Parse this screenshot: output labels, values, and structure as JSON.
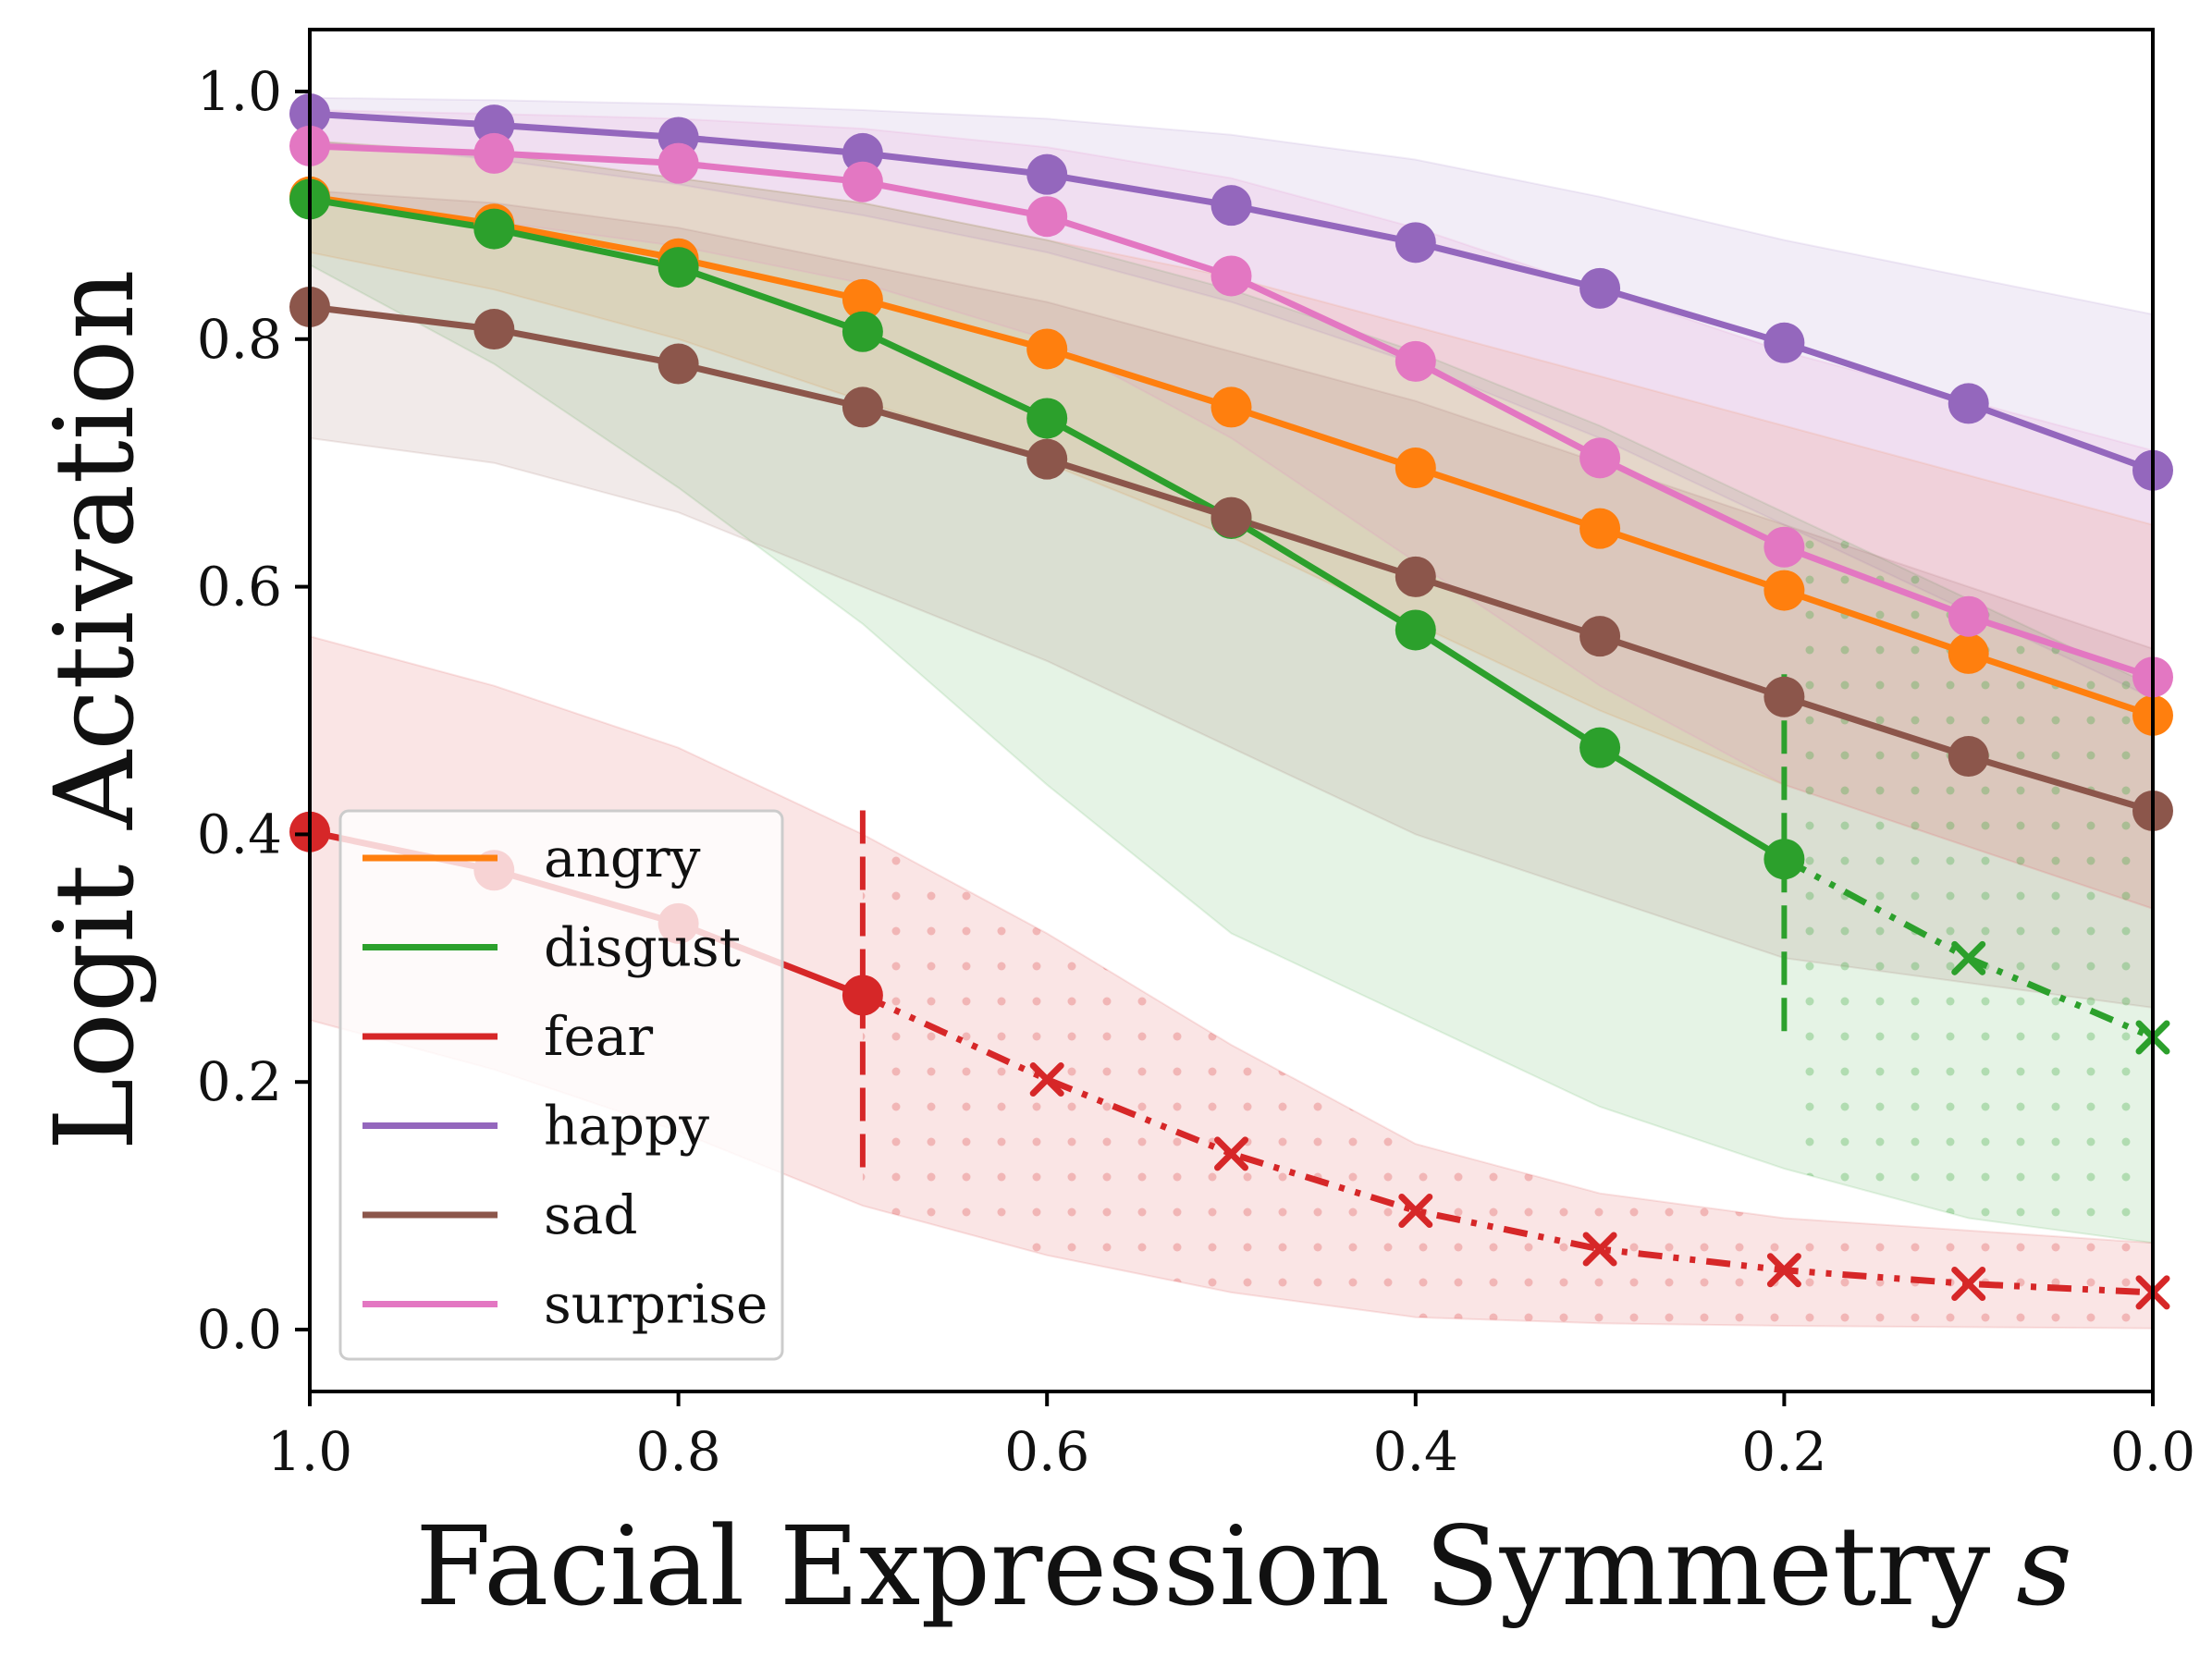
{
  "chart_data": {
    "type": "line",
    "title": "",
    "xlabel": "Facial Expression Symmetry",
    "xlabel_var": "s",
    "ylabel": "Logit Activation",
    "xlim": [
      1.0,
      0.0
    ],
    "ylim": [
      -0.05,
      1.05
    ],
    "x_reversed": true,
    "x": [
      1.0,
      0.9,
      0.8,
      0.7,
      0.6,
      0.5,
      0.4,
      0.3,
      0.2,
      0.1,
      0.0
    ],
    "x_ticks": [
      1.0,
      0.8,
      0.6,
      0.4,
      0.2,
      0.0
    ],
    "x_tick_labels": [
      "1.0",
      "0.8",
      "0.6",
      "0.4",
      "0.2",
      "0.0"
    ],
    "y_ticks": [
      0.0,
      0.2,
      0.4,
      0.6,
      0.8,
      1.0
    ],
    "y_tick_labels": [
      "0.0",
      "0.2",
      "0.4",
      "0.6",
      "0.8",
      "1.0"
    ],
    "grid": false,
    "legend_position": "bottom-left",
    "series": [
      {
        "name": "angry",
        "color": "#ff7f0e",
        "values": [
          0.915,
          0.893,
          0.865,
          0.832,
          0.792,
          0.745,
          0.696,
          0.647,
          0.597,
          0.546,
          0.496
        ],
        "lower": [
          0.87,
          0.84,
          0.8,
          0.75,
          0.7,
          0.64,
          0.57,
          0.5,
          0.44,
          0.39,
          0.34
        ],
        "upper": [
          0.96,
          0.95,
          0.93,
          0.91,
          0.88,
          0.85,
          0.81,
          0.77,
          0.73,
          0.69,
          0.65
        ]
      },
      {
        "name": "disgust",
        "color": "#2ca02c",
        "values": [
          0.913,
          0.889,
          0.858,
          0.806,
          0.736,
          0.655,
          0.565,
          0.47,
          0.38,
          0.3,
          0.236
        ],
        "lower": [
          0.86,
          0.78,
          0.68,
          0.57,
          0.44,
          0.32,
          0.25,
          0.18,
          0.13,
          0.09,
          0.07
        ],
        "upper": [
          0.96,
          0.95,
          0.93,
          0.91,
          0.88,
          0.84,
          0.79,
          0.73,
          0.66,
          0.59,
          0.52
        ],
        "cutoff": 0.2
      },
      {
        "name": "fear",
        "color": "#d62728",
        "values": [
          0.402,
          0.371,
          0.328,
          0.27,
          0.202,
          0.142,
          0.096,
          0.065,
          0.048,
          0.037,
          0.03
        ],
        "lower": [
          0.25,
          0.21,
          0.16,
          0.1,
          0.06,
          0.03,
          0.01,
          0.005,
          0.003,
          0.002,
          0.001
        ],
        "upper": [
          0.56,
          0.52,
          0.47,
          0.4,
          0.32,
          0.23,
          0.15,
          0.11,
          0.09,
          0.08,
          0.07
        ],
        "cutoff": 0.7
      },
      {
        "name": "happy",
        "color": "#9467bd",
        "values": [
          0.982,
          0.973,
          0.963,
          0.95,
          0.933,
          0.908,
          0.878,
          0.841,
          0.797,
          0.748,
          0.694
        ],
        "lower": [
          0.96,
          0.945,
          0.925,
          0.9,
          0.87,
          0.83,
          0.78,
          0.72,
          0.65,
          0.58,
          0.51
        ],
        "upper": [
          0.995,
          0.993,
          0.99,
          0.985,
          0.978,
          0.965,
          0.945,
          0.915,
          0.88,
          0.85,
          0.82
        ]
      },
      {
        "name": "sad",
        "color": "#8c564b",
        "values": [
          0.826,
          0.808,
          0.78,
          0.745,
          0.703,
          0.656,
          0.608,
          0.56,
          0.511,
          0.463,
          0.419
        ],
        "lower": [
          0.72,
          0.7,
          0.66,
          0.6,
          0.54,
          0.47,
          0.4,
          0.35,
          0.3,
          0.28,
          0.26
        ],
        "upper": [
          0.92,
          0.91,
          0.89,
          0.86,
          0.83,
          0.79,
          0.75,
          0.7,
          0.65,
          0.6,
          0.55
        ]
      },
      {
        "name": "surprise",
        "color": "#e377c2",
        "values": [
          0.956,
          0.95,
          0.942,
          0.927,
          0.899,
          0.851,
          0.782,
          0.704,
          0.632,
          0.576,
          0.527
        ],
        "lower": [
          0.91,
          0.895,
          0.875,
          0.845,
          0.8,
          0.72,
          0.62,
          0.52,
          0.44,
          0.39,
          0.34
        ],
        "upper": [
          0.985,
          0.982,
          0.978,
          0.97,
          0.955,
          0.93,
          0.89,
          0.84,
          0.79,
          0.75,
          0.71
        ]
      }
    ]
  }
}
